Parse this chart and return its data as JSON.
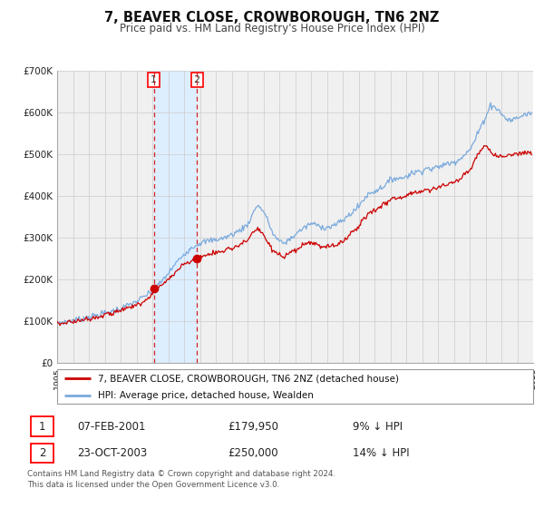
{
  "title": "7, BEAVER CLOSE, CROWBOROUGH, TN6 2NZ",
  "subtitle": "Price paid vs. HM Land Registry's House Price Index (HPI)",
  "legend_line1": "7, BEAVER CLOSE, CROWBOROUGH, TN6 2NZ (detached house)",
  "legend_line2": "HPI: Average price, detached house, Wealden",
  "sale1_date_str": "07-FEB-2001",
  "sale1_price_str": "£179,950",
  "sale1_hpi_str": "9% ↓ HPI",
  "sale2_date_str": "23-OCT-2003",
  "sale2_price_str": "£250,000",
  "sale2_hpi_str": "14% ↓ HPI",
  "sale1_date_num": 2001.09,
  "sale2_date_num": 2003.81,
  "sale1_price_val": 179950,
  "sale2_price_val": 250000,
  "hpi_color": "#7aaadd",
  "price_color": "#cc0000",
  "shade_color": "#ddeeff",
  "grid_color": "#cccccc",
  "footer": "Contains HM Land Registry data © Crown copyright and database right 2024.\nThis data is licensed under the Open Government Licence v3.0.",
  "ylim": [
    0,
    700000
  ],
  "xlim_start": 1995.0,
  "xlim_end": 2025.0,
  "bg_color": "#f0f0f0"
}
